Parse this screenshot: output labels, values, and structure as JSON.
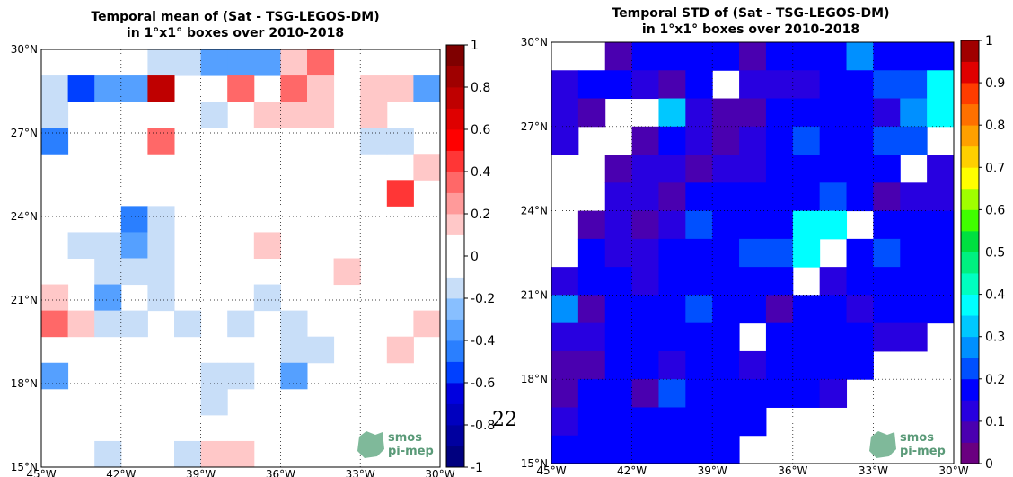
{
  "page_number": "22",
  "brand": {
    "line1": "smos",
    "line2": "pi-mep",
    "color": "#5a9a78"
  },
  "chart_data": [
    {
      "type": "heatmap",
      "title": [
        "Temporal mean of (Sat - TSG-LEGOS-DM)",
        "in 1°x1° boxes over 2010-2018"
      ],
      "x_ticks": [
        "45°W",
        "42°W",
        "39°W",
        "36°W",
        "33°W",
        "30°W"
      ],
      "y_ticks": [
        "30°N",
        "27°N",
        "24°N",
        "21°N",
        "18°N",
        "15°N"
      ],
      "colorbar": {
        "ticks": [
          "1",
          "0.8",
          "0.6",
          "0.4",
          "0.2",
          "0",
          "-0.2",
          "-0.4",
          "-0.6",
          "-0.8",
          "-1"
        ],
        "range": [
          -1,
          1
        ],
        "nbins": 20
      },
      "colormap": [
        "#00007f",
        "#00009f",
        "#0000bf",
        "#0000df",
        "#0040ff",
        "#2a7fff",
        "#55a0ff",
        "#88bfff",
        "#c8def8",
        "#ffffff",
        "#ffffff",
        "#ffc8c8",
        "#ff9a9a",
        "#ff6868",
        "#ff3636",
        "#ff0000",
        "#df0000",
        "#bf0000",
        "#9f0000",
        "#7f0000"
      ],
      "grid": [
        [
          null,
          null,
          null,
          null,
          -0.15,
          -0.15,
          -0.35,
          -0.35,
          -0.35,
          0.15,
          0.35,
          null,
          null,
          null,
          null
        ],
        [
          -0.15,
          -0.55,
          -0.35,
          -0.35,
          0.75,
          null,
          null,
          0.35,
          null,
          0.35,
          0.15,
          null,
          0.15,
          0.15,
          -0.35
        ],
        [
          -0.15,
          null,
          null,
          null,
          null,
          null,
          -0.15,
          null,
          0.15,
          0.15,
          0.15,
          null,
          0.15,
          null,
          null
        ],
        [
          -0.45,
          null,
          null,
          null,
          0.35,
          null,
          null,
          null,
          null,
          null,
          null,
          null,
          -0.15,
          -0.15,
          null
        ],
        [
          null,
          null,
          null,
          null,
          null,
          null,
          null,
          null,
          null,
          null,
          null,
          null,
          null,
          null,
          0.15
        ],
        [
          null,
          null,
          null,
          null,
          null,
          null,
          null,
          null,
          null,
          null,
          null,
          null,
          null,
          0.45,
          null
        ],
        [
          null,
          null,
          null,
          -0.45,
          -0.15,
          null,
          null,
          null,
          null,
          null,
          null,
          null,
          null,
          null,
          null
        ],
        [
          null,
          -0.15,
          -0.15,
          -0.35,
          -0.15,
          null,
          null,
          null,
          0.15,
          null,
          null,
          null,
          null,
          null,
          null
        ],
        [
          null,
          null,
          -0.15,
          -0.15,
          -0.15,
          null,
          null,
          null,
          null,
          null,
          null,
          0.15,
          null,
          null,
          null
        ],
        [
          0.15,
          null,
          -0.35,
          null,
          -0.15,
          null,
          null,
          null,
          -0.15,
          null,
          null,
          null,
          null,
          null,
          null
        ],
        [
          0.35,
          0.15,
          -0.15,
          -0.15,
          null,
          -0.15,
          null,
          -0.15,
          null,
          -0.15,
          null,
          null,
          null,
          null,
          0.15
        ],
        [
          null,
          null,
          null,
          null,
          null,
          null,
          null,
          null,
          null,
          -0.15,
          -0.15,
          null,
          null,
          0.15,
          null
        ],
        [
          -0.35,
          null,
          null,
          null,
          null,
          null,
          -0.15,
          -0.15,
          null,
          -0.35,
          null,
          null,
          null,
          null,
          null
        ],
        [
          null,
          null,
          null,
          null,
          null,
          null,
          -0.15,
          null,
          null,
          null,
          null,
          null,
          null,
          null,
          null
        ],
        [
          null,
          null,
          null,
          null,
          null,
          null,
          null,
          null,
          null,
          null,
          null,
          null,
          null,
          null,
          null
        ],
        [
          null,
          null,
          -0.15,
          null,
          null,
          -0.15,
          0.15,
          0.15,
          null,
          null,
          null,
          null,
          null,
          null,
          null
        ]
      ]
    },
    {
      "type": "heatmap",
      "title": [
        "Temporal STD of (Sat - TSG-LEGOS-DM)",
        "in 1°x1° boxes over 2010-2018"
      ],
      "x_ticks": [
        "45°W",
        "42°W",
        "39°W",
        "36°W",
        "33°W",
        "30°W"
      ],
      "y_ticks": [
        "30°N",
        "27°N",
        "24°N",
        "21°N",
        "18°N",
        "15°N"
      ],
      "colorbar": {
        "ticks": [
          "1",
          "0.9",
          "0.8",
          "0.7",
          "0.6",
          "0.5",
          "0.4",
          "0.3",
          "0.2",
          "0.1",
          "0"
        ],
        "range": [
          0,
          1
        ],
        "nbins": 20
      },
      "colormap": [
        "#6a0080",
        "#4a00b0",
        "#2800e0",
        "#0000ff",
        "#0050ff",
        "#0090ff",
        "#00c8ff",
        "#00ffff",
        "#00ffc0",
        "#00f080",
        "#00e040",
        "#40ff00",
        "#a0ff00",
        "#ffff00",
        "#ffd000",
        "#ffa000",
        "#ff7000",
        "#ff3c00",
        "#e00000",
        "#a00000"
      ],
      "grid": [
        [
          null,
          null,
          0.05,
          0.15,
          0.15,
          0.15,
          0.15,
          0.05,
          0.15,
          0.15,
          0.15,
          0.25,
          0.15,
          0.15,
          0.15
        ],
        [
          0.1,
          0.15,
          0.15,
          0.1,
          0.05,
          0.15,
          null,
          0.1,
          0.1,
          0.1,
          0.15,
          0.15,
          0.2,
          0.2,
          0.35
        ],
        [
          0.1,
          0.05,
          null,
          null,
          0.3,
          0.1,
          0.05,
          0.05,
          0.15,
          0.15,
          0.15,
          0.15,
          0.1,
          0.25,
          0.35
        ],
        [
          0.1,
          null,
          null,
          0.05,
          0.15,
          0.1,
          0.05,
          0.1,
          0.15,
          0.2,
          0.15,
          0.15,
          0.2,
          0.2,
          null
        ],
        [
          null,
          null,
          0.05,
          0.1,
          0.1,
          0.05,
          0.1,
          0.1,
          0.15,
          0.15,
          0.15,
          0.15,
          0.15,
          null,
          0.1
        ],
        [
          null,
          null,
          0.1,
          0.1,
          0.05,
          0.15,
          0.15,
          0.15,
          0.15,
          0.15,
          0.2,
          0.15,
          0.05,
          0.1,
          0.1
        ],
        [
          null,
          0.05,
          0.1,
          0.05,
          0.1,
          0.2,
          0.15,
          0.15,
          0.15,
          0.35,
          0.35,
          null,
          0.15,
          0.15,
          0.15
        ],
        [
          null,
          0.15,
          0.1,
          0.1,
          0.15,
          0.15,
          0.15,
          0.2,
          0.2,
          0.35,
          null,
          0.15,
          0.2,
          0.15,
          0.15
        ],
        [
          0.1,
          0.15,
          0.15,
          0.1,
          0.15,
          0.15,
          0.15,
          0.15,
          0.15,
          null,
          0.1,
          0.15,
          0.15,
          0.15,
          0.15
        ],
        [
          0.25,
          0.05,
          0.15,
          0.15,
          0.15,
          0.2,
          0.15,
          0.15,
          0.05,
          0.15,
          0.15,
          0.1,
          0.15,
          0.15,
          0.15
        ],
        [
          0.1,
          0.1,
          0.15,
          0.15,
          0.15,
          0.15,
          0.15,
          null,
          0.15,
          0.15,
          0.15,
          0.15,
          0.1,
          0.1,
          null
        ],
        [
          0.05,
          0.05,
          0.15,
          0.15,
          0.1,
          0.15,
          0.15,
          0.1,
          0.15,
          0.15,
          0.15,
          0.15,
          null,
          null,
          null
        ],
        [
          0.05,
          0.15,
          0.15,
          0.05,
          0.2,
          0.15,
          0.15,
          0.15,
          0.15,
          0.15,
          0.1,
          null,
          null,
          null,
          null
        ],
        [
          0.1,
          0.15,
          0.15,
          0.15,
          0.15,
          0.15,
          0.15,
          0.15,
          null,
          null,
          null,
          null,
          null,
          null,
          null
        ],
        [
          0.15,
          0.15,
          0.15,
          0.15,
          0.15,
          0.15,
          0.15,
          null,
          null,
          null,
          null,
          null,
          null,
          null,
          null
        ]
      ]
    }
  ]
}
